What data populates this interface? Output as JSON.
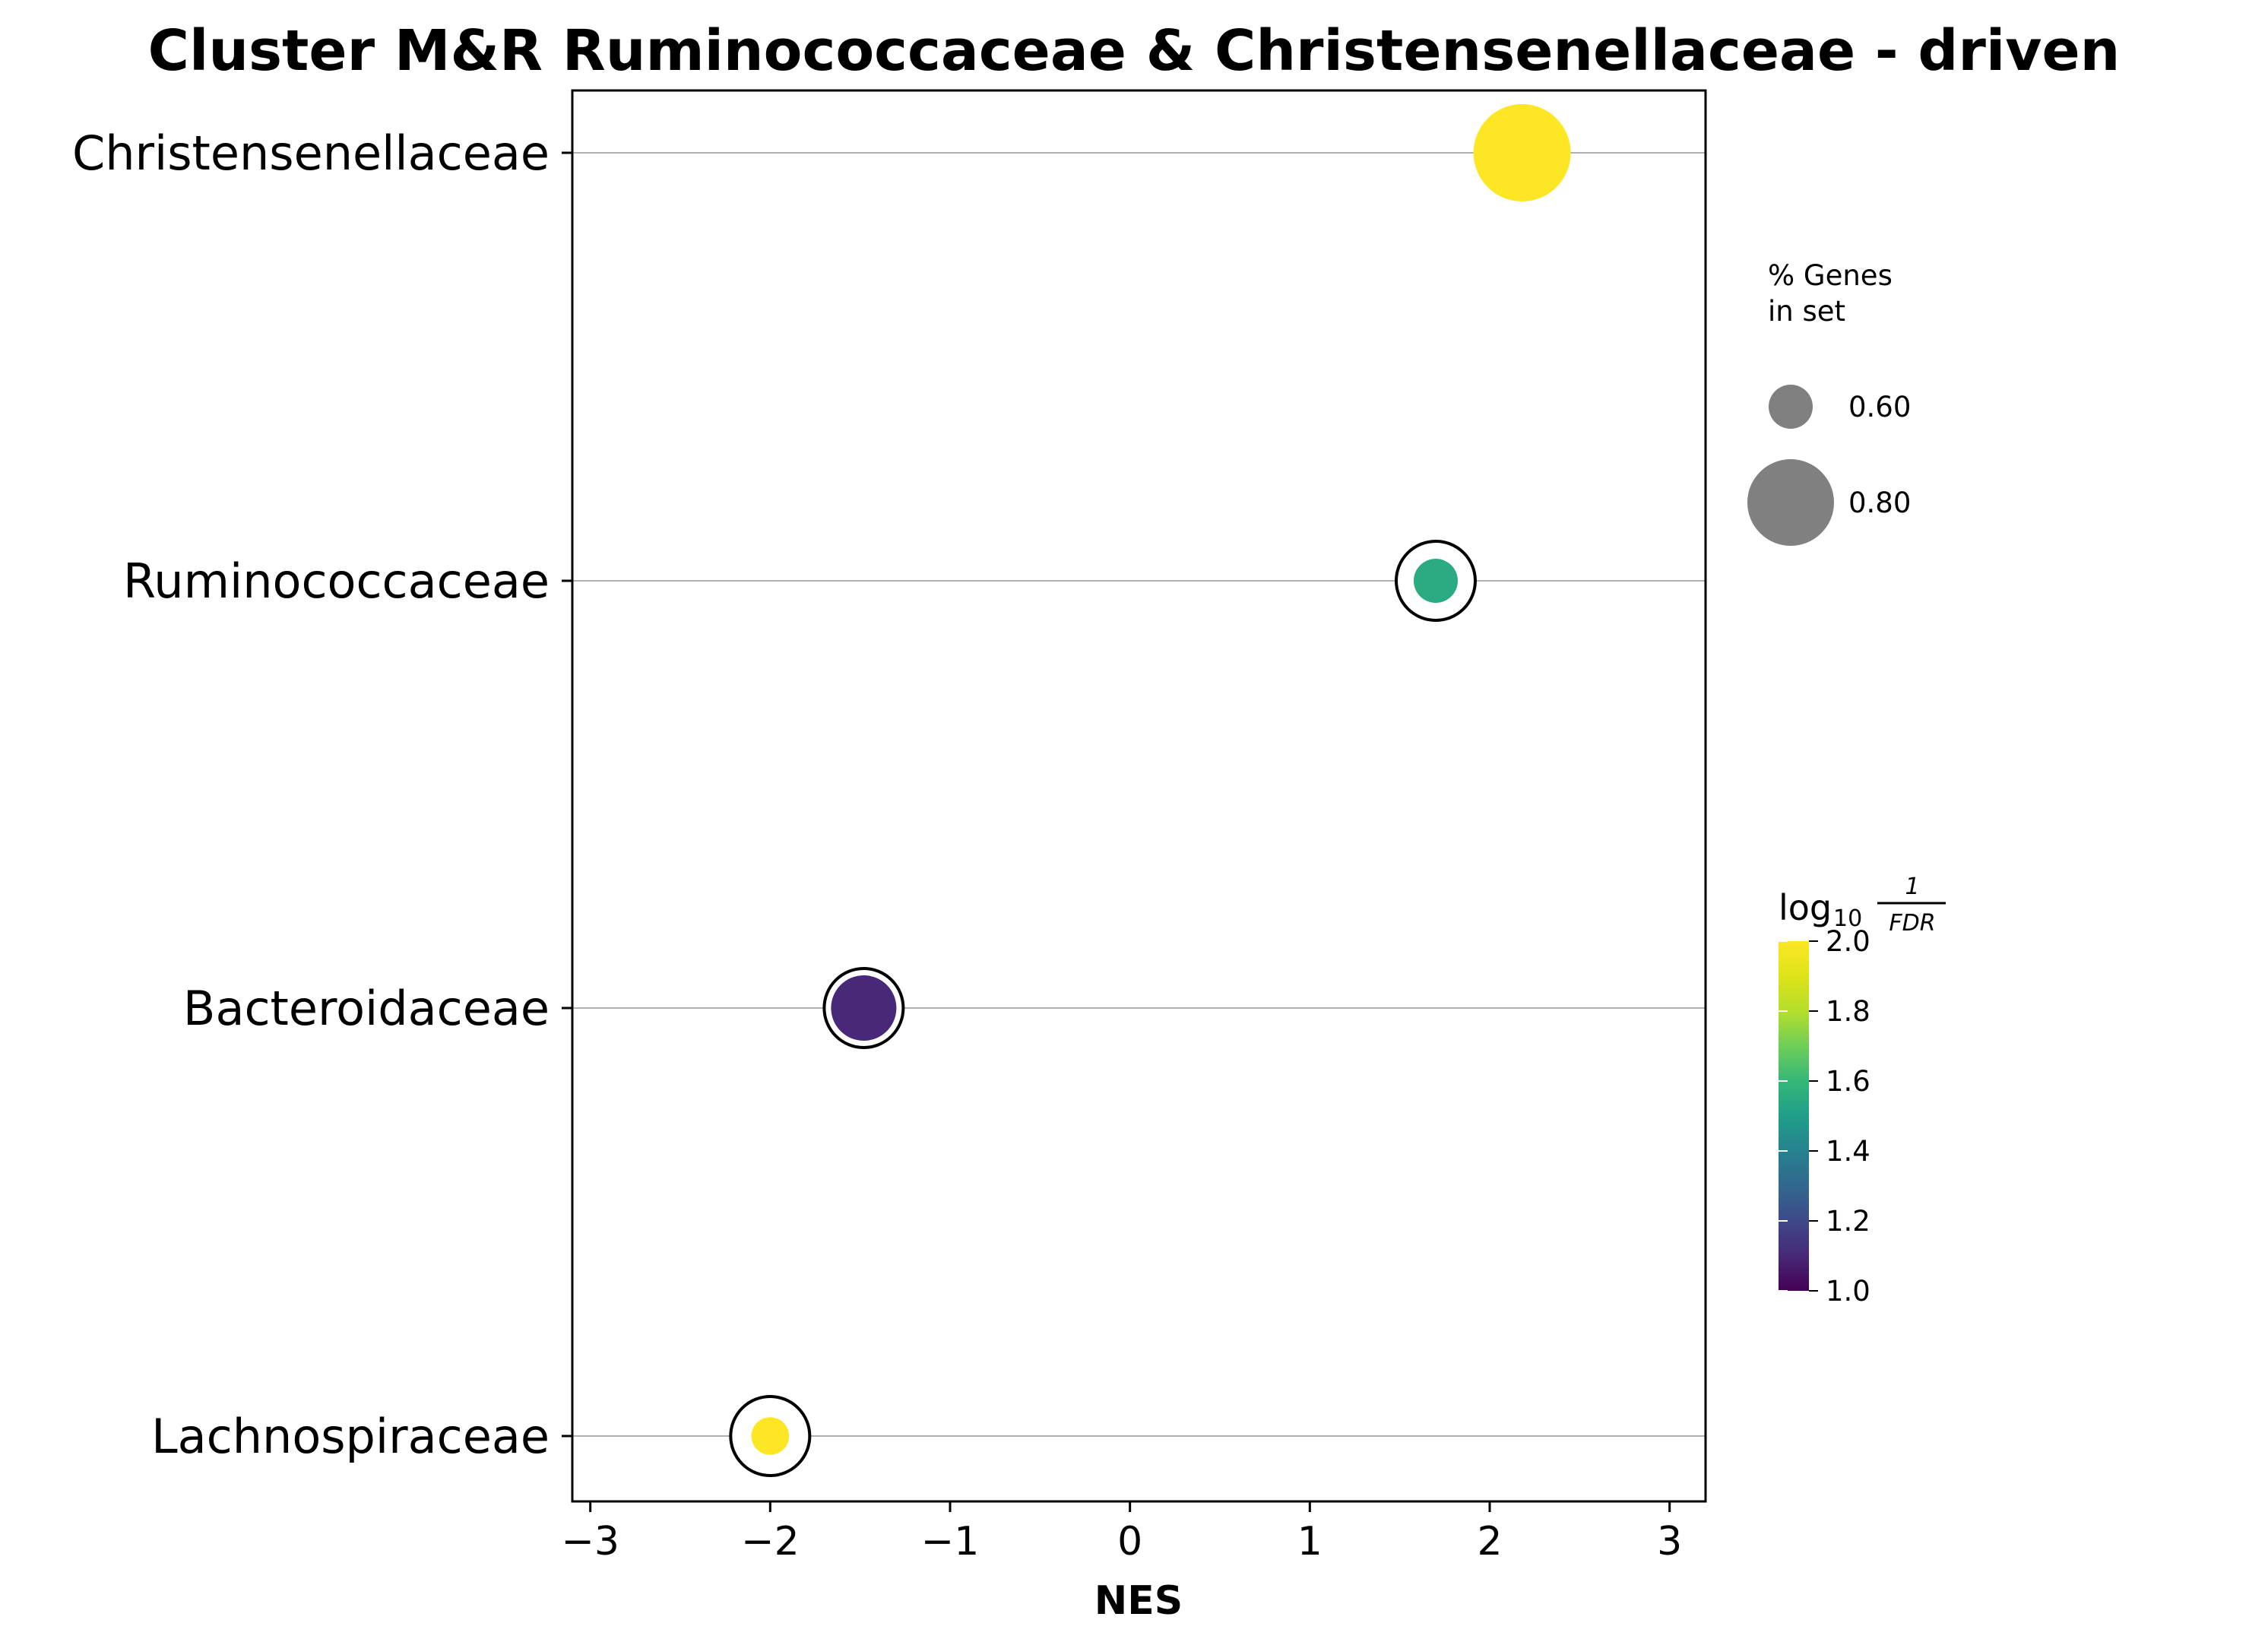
{
  "chart_data": {
    "type": "scatter",
    "title": "Cluster M&R Ruminococcaceae & Christensenellaceae - driven",
    "xlabel": "NES",
    "ylabel": "",
    "xlim": [
      -3.1,
      3.2
    ],
    "xticks": [
      -3,
      -2,
      -1,
      0,
      1,
      2,
      3
    ],
    "xtick_labels": [
      "−3",
      "−2",
      "−1",
      "0",
      "1",
      "2",
      "3"
    ],
    "categories": [
      "Christensenellaceae",
      "Ruminococcaceae",
      "Bacteroidaceae",
      "Lachnospiraceae"
    ],
    "points": [
      {
        "category": "Christensenellaceae",
        "nes": 2.18,
        "pct_genes": 0.85,
        "log10_inv_fdr": 2.0
      },
      {
        "category": "Ruminococcaceae",
        "nes": 1.7,
        "pct_genes": 0.6,
        "log10_inv_fdr": 1.55
      },
      {
        "category": "Bacteroidaceae",
        "nes": -1.48,
        "pct_genes": 0.7,
        "log10_inv_fdr": 1.1
      },
      {
        "category": "Lachnospiraceae",
        "nes": -2.0,
        "pct_genes": 0.57,
        "log10_inv_fdr": 2.0
      }
    ],
    "grid": "horizontal",
    "size_legend": {
      "title_line1": "% Genes",
      "title_line2": "in set",
      "entries": [
        {
          "value": 0.6,
          "label": "0.60"
        },
        {
          "value": 0.8,
          "label": "0.80"
        }
      ]
    },
    "colorbar": {
      "title_main": "log",
      "title_sub": "10",
      "title_num": "1",
      "title_den": "FDR",
      "range": [
        1.0,
        2.0
      ],
      "ticks": [
        1.0,
        1.2,
        1.4,
        1.6,
        1.8,
        2.0
      ],
      "tick_labels": [
        "1.0",
        "1.2",
        "1.4",
        "1.6",
        "1.8",
        "2.0"
      ],
      "colormap": "viridis"
    },
    "colors": {
      "gridline": "#b0b0b0",
      "outline_ring": "#000000",
      "legend_marker": "#808080"
    }
  }
}
